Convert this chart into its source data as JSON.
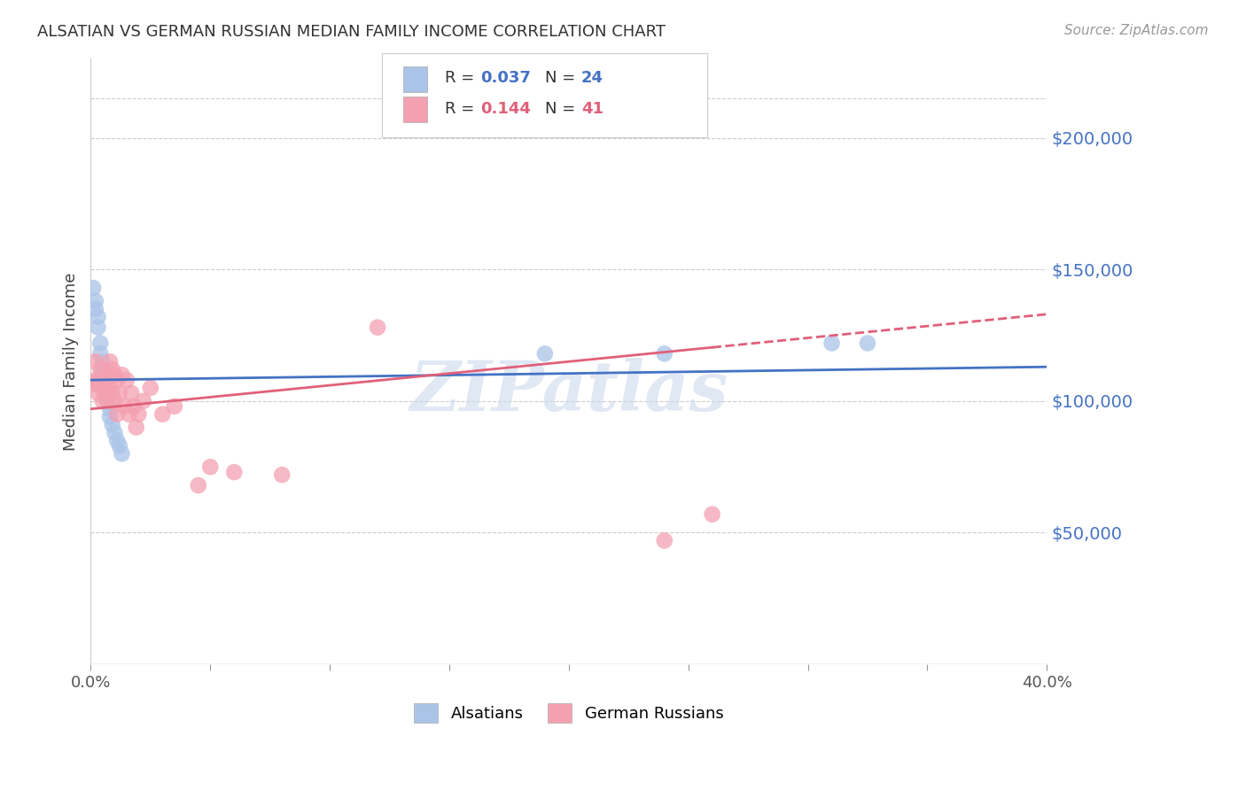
{
  "title": "ALSATIAN VS GERMAN RUSSIAN MEDIAN FAMILY INCOME CORRELATION CHART",
  "source": "Source: ZipAtlas.com",
  "ylabel": "Median Family Income",
  "xlim": [
    0.0,
    0.4
  ],
  "ylim": [
    0,
    230000
  ],
  "background_color": "#ffffff",
  "grid_color": "#cccccc",
  "watermark": "ZIPatlas",
  "alsatians_color": "#aac4e8",
  "german_russians_color": "#f4a0b0",
  "alsatians_line_color": "#4472c4",
  "german_russians_line_color": "#e0607a",
  "legend_r1": "R = 0.037",
  "legend_n1": "N = 24",
  "legend_r2": "R = 0.144",
  "legend_n2": "N = 41",
  "als_x": [
    0.001,
    0.002,
    0.002,
    0.003,
    0.003,
    0.004,
    0.004,
    0.005,
    0.005,
    0.006,
    0.006,
    0.007,
    0.007,
    0.008,
    0.008,
    0.009,
    0.01,
    0.011,
    0.012,
    0.013,
    0.19,
    0.31,
    0.325,
    0.24
  ],
  "als_y": [
    143000,
    138000,
    135000,
    132000,
    128000,
    122000,
    118000,
    115000,
    111000,
    108000,
    105000,
    103000,
    100000,
    97000,
    94000,
    91000,
    88000,
    85000,
    83000,
    80000,
    118000,
    122000,
    122000,
    118000
  ],
  "gr_x": [
    0.001,
    0.002,
    0.002,
    0.003,
    0.003,
    0.004,
    0.004,
    0.005,
    0.005,
    0.006,
    0.006,
    0.007,
    0.007,
    0.008,
    0.008,
    0.009,
    0.009,
    0.01,
    0.01,
    0.011,
    0.011,
    0.012,
    0.013,
    0.014,
    0.015,
    0.016,
    0.017,
    0.018,
    0.019,
    0.02,
    0.022,
    0.025,
    0.03,
    0.035,
    0.045,
    0.05,
    0.06,
    0.08,
    0.12,
    0.24,
    0.26
  ],
  "gr_y": [
    107000,
    115000,
    108000,
    106000,
    103000,
    112000,
    107000,
    105000,
    100000,
    110000,
    103000,
    108000,
    100000,
    115000,
    105000,
    112000,
    103000,
    110000,
    100000,
    108000,
    95000,
    103000,
    110000,
    98000,
    108000,
    95000,
    103000,
    98000,
    90000,
    95000,
    100000,
    105000,
    95000,
    98000,
    68000,
    75000,
    73000,
    72000,
    128000,
    47000,
    57000
  ]
}
